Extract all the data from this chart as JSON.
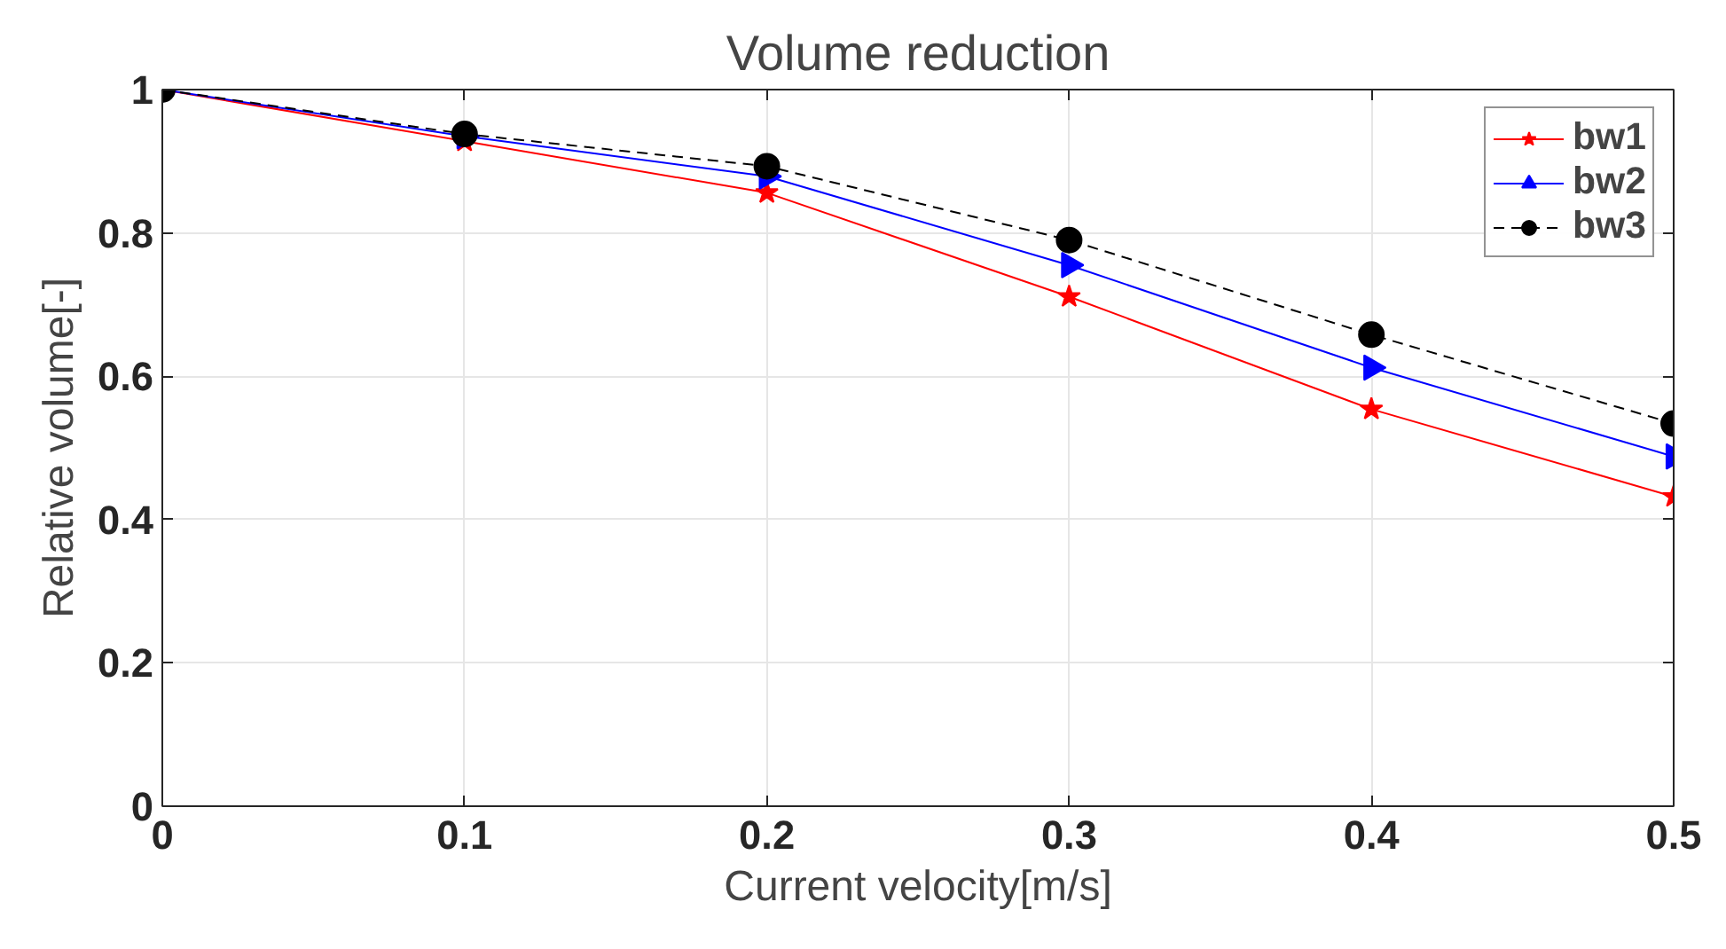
{
  "chart_data": {
    "type": "line",
    "title": "Volume reduction",
    "xlabel": "Current velocity[m/s]",
    "ylabel": "Relative volume[-]",
    "x": [
      0,
      0.1,
      0.2,
      0.3,
      0.4,
      0.5
    ],
    "series": [
      {
        "name": "bw1",
        "color": "#ff0000",
        "marker": "star",
        "line_style": "solid",
        "values": [
          1,
          0.928,
          0.856,
          0.711,
          0.554,
          0.432
        ]
      },
      {
        "name": "bw2",
        "color": "#0000ff",
        "marker": "triangle",
        "line_style": "solid",
        "values": [
          1,
          0.935,
          0.879,
          0.755,
          0.612,
          0.488
        ]
      },
      {
        "name": "bw3",
        "color": "#000000",
        "marker": "circle",
        "line_style": "dashed",
        "values": [
          1,
          0.938,
          0.893,
          0.79,
          0.658,
          0.534
        ]
      }
    ],
    "xlim": [
      0,
      0.5
    ],
    "xticks": [
      0,
      0.1,
      0.2,
      0.3,
      0.4,
      0.5
    ],
    "ylim": [
      0,
      1
    ],
    "yticks": [
      0,
      0.2,
      0.4,
      0.6,
      0.8,
      1
    ],
    "grid": true,
    "legend": "top right"
  }
}
